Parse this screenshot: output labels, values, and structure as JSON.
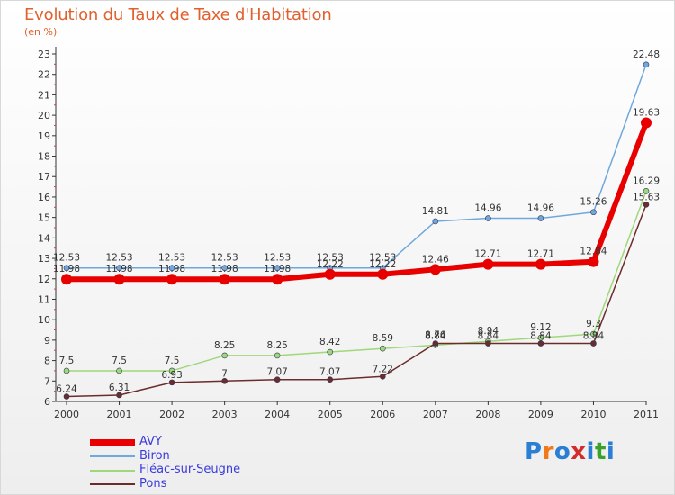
{
  "chart_data": {
    "type": "line",
    "title": "Evolution du Taux de Taxe d'Habitation",
    "subtitle": "(en %)",
    "x": [
      "2000",
      "2001",
      "2002",
      "2003",
      "2004",
      "2005",
      "2006",
      "2007",
      "2008",
      "2009",
      "2010",
      "2011"
    ],
    "ylim": [
      6,
      23
    ],
    "yticks": [
      6,
      7,
      8,
      9,
      10,
      11,
      12,
      13,
      14,
      15,
      16,
      17,
      18,
      19,
      20,
      21,
      22,
      23
    ],
    "grid": false,
    "legend_position": "bottom-left",
    "series": [
      {
        "name": "AVY",
        "color": "#e80000",
        "values": [
          11.98,
          11.98,
          11.98,
          11.98,
          11.98,
          12.22,
          12.22,
          12.46,
          12.71,
          12.71,
          12.84,
          19.63
        ],
        "labels": [
          "11.98",
          "11.98",
          "11.98",
          "11.98",
          "11.98",
          "12.22",
          "12.22",
          "12.46",
          "12.71",
          "12.71",
          "12.84",
          "19.63"
        ]
      },
      {
        "name": "Biron",
        "color": "#6fa8dc",
        "values": [
          12.53,
          12.53,
          12.53,
          12.53,
          12.53,
          12.53,
          12.53,
          14.81,
          14.96,
          14.96,
          15.26,
          22.48
        ],
        "labels": [
          "12.53",
          "12.53",
          "12.53",
          "12.53",
          "12.53",
          "12.53",
          "12.53",
          "14.81",
          "14.96",
          "14.96",
          "15.26",
          "22.48"
        ]
      },
      {
        "name": "Fléac-sur-Seugne",
        "color": "#9fd87a",
        "values": [
          7.5,
          7.5,
          7.5,
          8.25,
          8.25,
          8.42,
          8.59,
          8.76,
          8.94,
          9.12,
          9.3,
          16.29
        ],
        "labels": [
          "7.5",
          "7.5",
          "7.5",
          "8.25",
          "8.25",
          "8.42",
          "8.59",
          "8.76",
          "8.94",
          "9.12",
          "9.3",
          "16.29"
        ]
      },
      {
        "name": "Pons",
        "color": "#6b2c2c",
        "values": [
          6.24,
          6.31,
          6.93,
          7,
          7.07,
          7.07,
          7.22,
          8.84,
          8.84,
          8.84,
          8.84,
          15.63
        ],
        "labels": [
          "6.24",
          "6.31",
          "6.93",
          "7",
          "7.07",
          "7.07",
          "7.22",
          "8.84",
          "8.84",
          "8.84",
          "8.84",
          "15.63"
        ]
      }
    ]
  },
  "logo": {
    "text": "Proxiti",
    "colors": [
      "#2a7fd4",
      "#f07a1a",
      "#2a7fd4",
      "#d62b2b",
      "#2a7fd4",
      "#3aa12a",
      "#2a7fd4"
    ]
  }
}
